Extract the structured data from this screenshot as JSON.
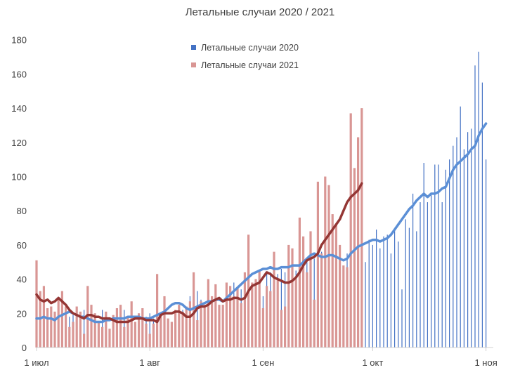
{
  "chart_data": {
    "type": "bar+line",
    "title": "Летальные случаи 2020 / 2021",
    "xlabel": "",
    "ylabel": "",
    "ylim": [
      0,
      180
    ],
    "y_ticks": [
      0,
      20,
      40,
      60,
      80,
      100,
      120,
      140,
      160,
      180
    ],
    "x_ticks": [
      {
        "day": 0,
        "label": "1 июл"
      },
      {
        "day": 31,
        "label": "1 авг"
      },
      {
        "day": 62,
        "label": "1 сен"
      },
      {
        "day": 92,
        "label": "1 окт"
      },
      {
        "day": 123,
        "label": "1 ноя"
      }
    ],
    "grid": false,
    "legend": {
      "position": "top-center"
    },
    "colors": {
      "bars_2020": "#4472c4",
      "bars_2021": "#d99694",
      "avg_2020": "#5b8fd6",
      "avg_2021": "#943634",
      "axis": "#d0d0d0"
    },
    "series": [
      {
        "name": "Летальные случаи 2020",
        "kind": "bar",
        "start_day": 0,
        "values": [
          17,
          16,
          17,
          18,
          16,
          13,
          24,
          17,
          16,
          18,
          19,
          20,
          20,
          22,
          27,
          16,
          20,
          15,
          22,
          17,
          10,
          14,
          21,
          17,
          22,
          14,
          19,
          10,
          20,
          8,
          18,
          20,
          17,
          16,
          14,
          27,
          16,
          10,
          20,
          15,
          22,
          15,
          30,
          22,
          33,
          28,
          22,
          34,
          28,
          30,
          21,
          20,
          31,
          28,
          38,
          30,
          34,
          40,
          38,
          34,
          32,
          26,
          30,
          44,
          44,
          42,
          43,
          46,
          44,
          50,
          44,
          45,
          49,
          38,
          50,
          46,
          52,
          50,
          56,
          48,
          72,
          50,
          54,
          58,
          47,
          55,
          60,
          40,
          70,
          60,
          50,
          63,
          60,
          69,
          58,
          65,
          66,
          55,
          70,
          62,
          34,
          75,
          70,
          90,
          68,
          85,
          108,
          85,
          90,
          107,
          107,
          85,
          104,
          110,
          118,
          123,
          141,
          116,
          126,
          128,
          165,
          173,
          155,
          110
        ],
        "moving_average": [
          17,
          17,
          18,
          17,
          17,
          16,
          18,
          19,
          20,
          21,
          20,
          19,
          18,
          18,
          17,
          16,
          15,
          15,
          15,
          16,
          16,
          17,
          17,
          17,
          17,
          18,
          18,
          18,
          18,
          17,
          17,
          17,
          18,
          19,
          20,
          21,
          23,
          25,
          26,
          26,
          25,
          23,
          22,
          23,
          24,
          25,
          26,
          27,
          27,
          28,
          28,
          27,
          29,
          31,
          33,
          35,
          37,
          39,
          41,
          43,
          44,
          45,
          46,
          46,
          47,
          46,
          46,
          47,
          47,
          47,
          48,
          48,
          48,
          50,
          52,
          54,
          55,
          54,
          53,
          53,
          54,
          54,
          53,
          52,
          51,
          52,
          55,
          57,
          59,
          60,
          61,
          62,
          63,
          63,
          62,
          63,
          64,
          66,
          69,
          72,
          75,
          78,
          81,
          83,
          86,
          88,
          90,
          88,
          90,
          90,
          91,
          93,
          94,
          99,
          104,
          107,
          109,
          111,
          113,
          116,
          118,
          124,
          128,
          131
        ]
      },
      {
        "name": "Летальные случаи 2021",
        "kind": "bar",
        "start_day": 0,
        "values": [
          51,
          33,
          36,
          23,
          24,
          21,
          28,
          33,
          24,
          12,
          15,
          24,
          21,
          8,
          36,
          25,
          20,
          15,
          12,
          21,
          11,
          19,
          23,
          25,
          12,
          18,
          27,
          15,
          20,
          23,
          14,
          8,
          14,
          43,
          20,
          30,
          17,
          15,
          22,
          25,
          21,
          24,
          27,
          44,
          16,
          27,
          25,
          40,
          30,
          37,
          25,
          25,
          38,
          36,
          30,
          35,
          26,
          44,
          66,
          38,
          40,
          45,
          23,
          36,
          33,
          56,
          40,
          22,
          24,
          60,
          58,
          40,
          76,
          65,
          44,
          68,
          28,
          97,
          55,
          100,
          95,
          78,
          72,
          60,
          48,
          47,
          137,
          105,
          123,
          140
        ],
        "moving_average": [
          31,
          28,
          27,
          28,
          26,
          27,
          29,
          27,
          25,
          22,
          20,
          19,
          18,
          17,
          19,
          19,
          18,
          18,
          17,
          17,
          17,
          16,
          15,
          15,
          15,
          15,
          16,
          17,
          17,
          17,
          16,
          16,
          16,
          15,
          19,
          20,
          20,
          20,
          21,
          21,
          20,
          18,
          18,
          20,
          23,
          24,
          24,
          25,
          27,
          28,
          29,
          27,
          28,
          28,
          29,
          29,
          28,
          29,
          33,
          36,
          37,
          38,
          41,
          44,
          43,
          41,
          40,
          39,
          38,
          38,
          39,
          41,
          44,
          48,
          51,
          52,
          53,
          55,
          60,
          63,
          66,
          69,
          72,
          75,
          80,
          85,
          88,
          90,
          92,
          96
        ]
      }
    ]
  }
}
